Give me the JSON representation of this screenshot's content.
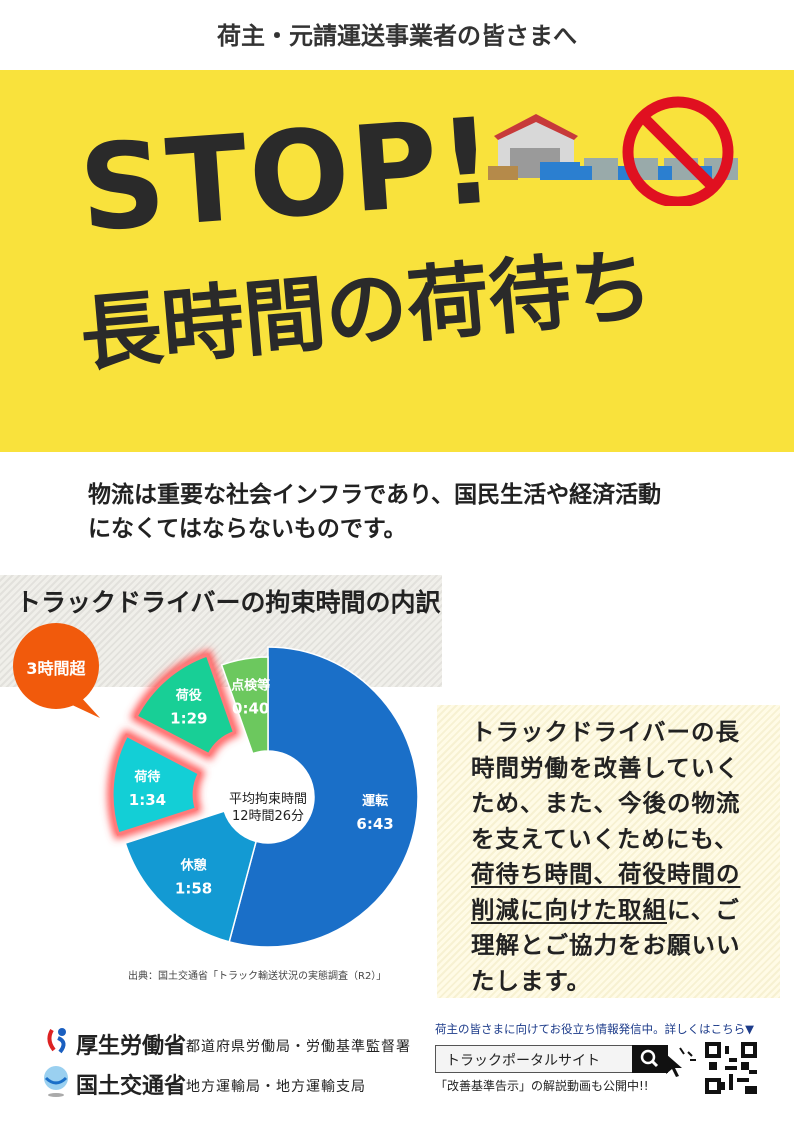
{
  "header": {
    "title": "荷主・元請運送事業者の皆さまへ"
  },
  "hero": {
    "stop": "STOP!",
    "headline": "長時間の荷待ち",
    "band_color": "#f9e23c",
    "icons": [
      "warehouse-icon",
      "truck-icon",
      "prohibited-icon"
    ]
  },
  "intro": {
    "line1": "物流は重要な社会インフラであり、国民生活や経済活動",
    "line2": "になくてはならないものです。"
  },
  "chart_data": {
    "type": "pie",
    "title": "トラックドライバーの拘束時間の内訳",
    "center_label": [
      "平均拘束時間",
      "12時間26分"
    ],
    "slices": [
      {
        "label": "運転",
        "value_text": "6:43",
        "minutes": 403,
        "color": "#1a6fc8",
        "exploded": false
      },
      {
        "label": "休憩",
        "value_text": "1:58",
        "minutes": 118,
        "color": "#139ad3",
        "exploded": false
      },
      {
        "label": "荷待",
        "value_text": "1:34",
        "minutes": 94,
        "color": "#13cfd6",
        "exploded": true
      },
      {
        "label": "荷役",
        "value_text": "1:29",
        "minutes": 89,
        "color": "#18cf96",
        "exploded": true
      },
      {
        "label": "点検等",
        "value_text": "0:40",
        "minutes": 40,
        "color": "#6cc85e",
        "exploded": false
      }
    ],
    "callout": "3時間超",
    "callout_color": "#f15a0c",
    "source": "出典：国土交通省「トラック輸送状況の実態調査（R2）」"
  },
  "message": {
    "l1": "トラックドライバーの長",
    "l2": "時間労働を改善していく",
    "l3": "ため、また、今後の物流",
    "l4": "を支えていくためにも、",
    "l5": "荷待ち時間、荷役時間の",
    "l6a": "削減に向けた取組",
    "l6b": "に、ご",
    "l7": "理解とご協力をお願いい",
    "l8": "たします。"
  },
  "footer": {
    "mhlw": "厚生労働省",
    "mhlw_sub": "都道府県労働局・労働基準監督署",
    "mlit": "国土交通省",
    "mlit_sub": "地方運輸局・地方運輸支局",
    "portal_note": "荷主の皆さまに向けてお役立ち情報発信中。詳しくはこちら▼",
    "search_text": "トラックポータルサイト",
    "video_note": "「改善基準告示」の解説動画も公開中!!"
  }
}
